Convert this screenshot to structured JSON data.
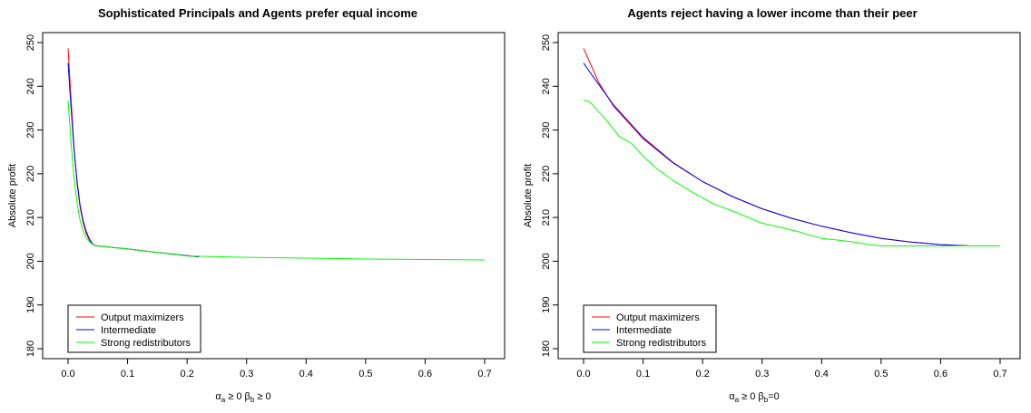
{
  "chart_data": [
    {
      "type": "line",
      "title": "Sophisticated Principals and Agents prefer equal income",
      "ylabel": "Absolute profit",
      "xlabel_parts": [
        "α",
        "a",
        " ≥ 0    β",
        "b",
        " ≥ 0"
      ],
      "xlim": [
        0,
        0.7
      ],
      "ylim": [
        180,
        250
      ],
      "x_ticks": [
        0.0,
        0.1,
        0.2,
        0.3,
        0.4,
        0.5,
        0.6,
        0.7
      ],
      "x_tick_labels": [
        "0.0",
        "0.1",
        "0.2",
        "0.3",
        "0.4",
        "0.5",
        "0.6",
        "0.7"
      ],
      "y_ticks": [
        180,
        190,
        200,
        210,
        220,
        230,
        240,
        250
      ],
      "y_tick_labels": [
        "180",
        "190",
        "200",
        "210",
        "220",
        "230",
        "240",
        "250"
      ],
      "grid": false,
      "legend_position": "bottom-left",
      "series": [
        {
          "name": "Output maximizers",
          "color": "#ff0000",
          "x": [
            0,
            0.005,
            0.01,
            0.015,
            0.02,
            0.025,
            0.03,
            0.035,
            0.04,
            0.045,
            0.05,
            0.1,
            0.15,
            0.2,
            0.22
          ],
          "y": [
            248.7,
            237,
            226,
            218,
            212.5,
            209,
            206.5,
            205,
            204,
            203.6,
            203.5,
            202.8,
            202,
            201.3,
            201
          ]
        },
        {
          "name": "Intermediate",
          "color": "#0000ff",
          "x": [
            0,
            0.005,
            0.01,
            0.015,
            0.02,
            0.025,
            0.03,
            0.035,
            0.04,
            0.045,
            0.05,
            0.1,
            0.15,
            0.2,
            0.22
          ],
          "y": [
            245.3,
            235,
            225.5,
            218.5,
            213,
            209.5,
            207,
            205.3,
            204.2,
            203.6,
            203.5,
            202.8,
            202,
            201.3,
            201
          ]
        },
        {
          "name": "Strong redistributors",
          "color": "#00ff00",
          "x": [
            0,
            0.005,
            0.01,
            0.015,
            0.02,
            0.025,
            0.03,
            0.035,
            0.04,
            0.045,
            0.05,
            0.1,
            0.15,
            0.2,
            0.3,
            0.4,
            0.5,
            0.6,
            0.7
          ],
          "y": [
            236.8,
            227,
            219,
            213.5,
            209.5,
            207,
            205.5,
            204.5,
            204,
            203.7,
            203.5,
            202.8,
            202,
            201.2,
            200.9,
            200.7,
            200.5,
            200.4,
            200.3
          ]
        }
      ]
    },
    {
      "type": "line",
      "title": "Agents reject having a lower income than their peer",
      "ylabel": "Absolute profit",
      "xlabel_parts": [
        "α",
        "a",
        " ≥ 0    β",
        "b",
        "=0"
      ],
      "xlim": [
        0,
        0.7
      ],
      "ylim": [
        180,
        250
      ],
      "x_ticks": [
        0.0,
        0.1,
        0.2,
        0.3,
        0.4,
        0.5,
        0.6,
        0.7
      ],
      "x_tick_labels": [
        "0.0",
        "0.1",
        "0.2",
        "0.3",
        "0.4",
        "0.5",
        "0.6",
        "0.7"
      ],
      "y_ticks": [
        180,
        190,
        200,
        210,
        220,
        230,
        240,
        250
      ],
      "y_tick_labels": [
        "180",
        "190",
        "200",
        "210",
        "220",
        "230",
        "240",
        "250"
      ],
      "grid": false,
      "legend_position": "bottom-left",
      "series": [
        {
          "name": "Output maximizers",
          "color": "#ff0000",
          "x": [
            0,
            0.025,
            0.05,
            0.1,
            0.15,
            0.2,
            0.25,
            0.3,
            0.35,
            0.4,
            0.45,
            0.5,
            0.55,
            0.6,
            0.65
          ],
          "y": [
            248.7,
            241,
            235.5,
            228,
            222.5,
            218.2,
            214.8,
            212,
            209.8,
            208,
            206.5,
            205.2,
            204.4,
            203.8,
            203.5
          ]
        },
        {
          "name": "Intermediate",
          "color": "#0000ff",
          "x": [
            0,
            0.025,
            0.05,
            0.1,
            0.15,
            0.2,
            0.25,
            0.3,
            0.35,
            0.4,
            0.45,
            0.5,
            0.55,
            0.6,
            0.65
          ],
          "y": [
            245.3,
            240.5,
            235.8,
            228.3,
            222.6,
            218.2,
            214.8,
            212,
            209.8,
            208,
            206.5,
            205.2,
            204.4,
            203.8,
            203.5
          ]
        },
        {
          "name": "Strong redistributors",
          "color": "#00ff00",
          "x": [
            0,
            0.01,
            0.02,
            0.04,
            0.06,
            0.08,
            0.1,
            0.12,
            0.15,
            0.18,
            0.2,
            0.22,
            0.25,
            0.28,
            0.3,
            0.33,
            0.36,
            0.38,
            0.4,
            0.43,
            0.46,
            0.48,
            0.5,
            0.55,
            0.6,
            0.65,
            0.7
          ],
          "y": [
            236.8,
            236.5,
            235,
            232,
            228.5,
            227,
            224,
            221.5,
            218.5,
            216,
            214.5,
            213,
            211.5,
            209.8,
            208.7,
            207.8,
            206.8,
            206,
            205.2,
            204.8,
            204.3,
            203.8,
            203.5,
            203.5,
            203.5,
            203.5,
            203.5
          ]
        }
      ]
    }
  ]
}
